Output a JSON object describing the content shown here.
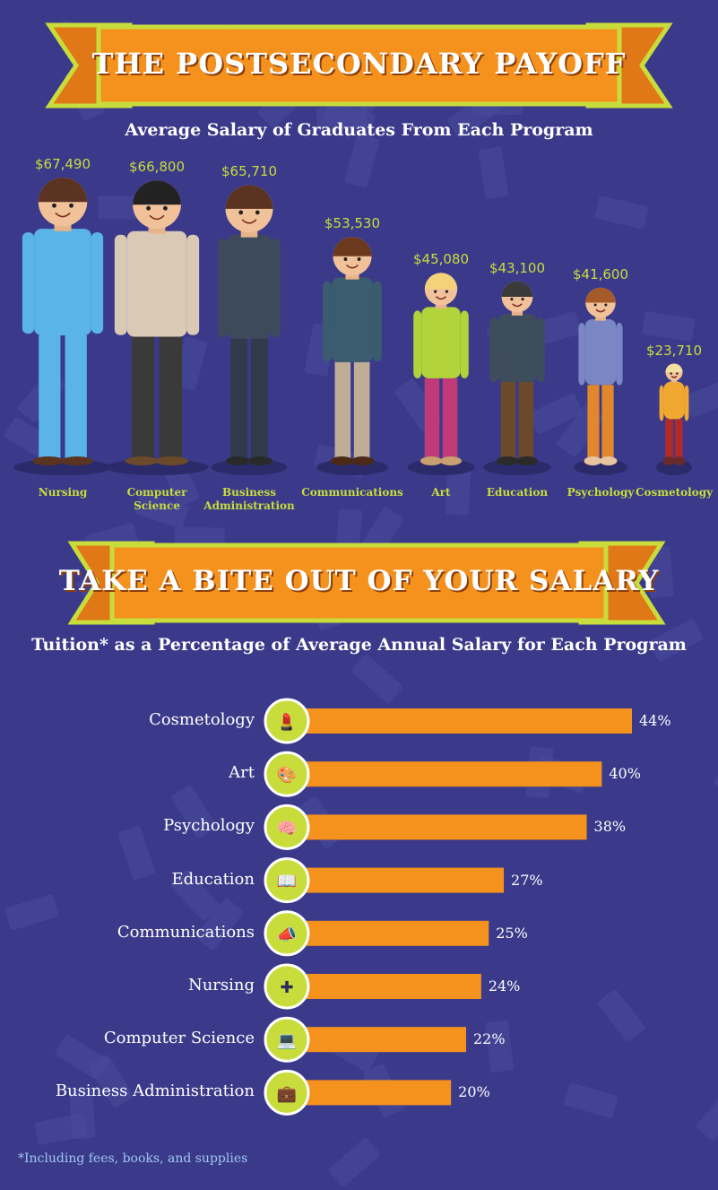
{
  "header": {
    "title": "THE POSTSECONDARY PAYOFF",
    "subtitle": "Average Salary of Graduates From Each Program"
  },
  "second_header": {
    "title": "TAKE A BITE OUT OF YOUR SALARY",
    "subtitle": "Tuition* as a Percentage of Average Annual Salary for Each Program"
  },
  "footnote": "*Including fees, books, and supplies",
  "colors": {
    "background": "#3b3a8a",
    "banner_orange": "#f5921e",
    "banner_border": "#c8dd3b",
    "accent_green": "#c8dd3b",
    "bar_orange": "#f5921e"
  },
  "chart_data": [
    {
      "type": "bar",
      "title": "Average Salary of Graduates From Each Program",
      "categories": [
        "Nursing",
        "Computer Science",
        "Business Administration",
        "Communications",
        "Art",
        "Education",
        "Psychology",
        "Cosmetology"
      ],
      "category_lines": [
        [
          "Nursing"
        ],
        [
          "Computer",
          "Science"
        ],
        [
          "Business",
          "Administration"
        ],
        [
          "Communications"
        ],
        [
          "Art"
        ],
        [
          "Education"
        ],
        [
          "Psychology"
        ],
        [
          "Cosmetology"
        ]
      ],
      "values": [
        67490,
        66800,
        65710,
        53530,
        45080,
        43100,
        41600,
        23710
      ],
      "value_labels": [
        "$67,490",
        "$66,800",
        "$65,710",
        "$53,530",
        "$45,080",
        "$43,100",
        "$41,600",
        "$23,710"
      ],
      "marks": "illustrated people scaled by salary"
    },
    {
      "type": "bar",
      "orientation": "horizontal",
      "title": "Tuition* as a Percentage of Average Annual Salary for Each Program",
      "categories": [
        "Cosmetology",
        "Art",
        "Psychology",
        "Education",
        "Communications",
        "Nursing",
        "Computer Science",
        "Business Administration"
      ],
      "values": [
        44,
        40,
        38,
        27,
        25,
        24,
        22,
        20
      ],
      "value_labels": [
        "44%",
        "40%",
        "38%",
        "27%",
        "25%",
        "24%",
        "22%",
        "20%"
      ],
      "icons": [
        "makeup-icon",
        "paint-palette-icon",
        "brain-icon",
        "book-icon",
        "megaphone-icon",
        "nurse-cap-icon",
        "laptop-icon",
        "briefcase-icon"
      ]
    }
  ]
}
